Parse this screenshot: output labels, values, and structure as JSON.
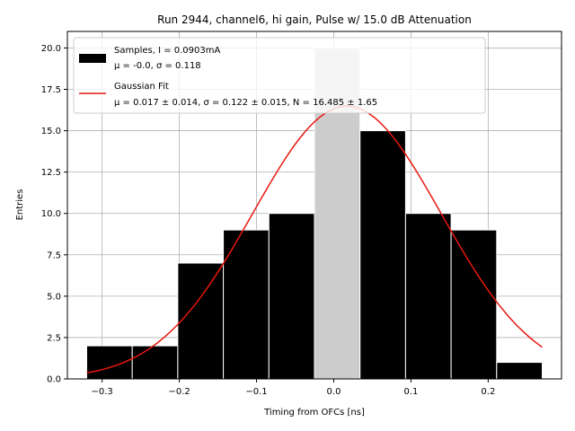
{
  "chart_data": {
    "type": "bar",
    "title": "Run 2944, channel6, hi gain, Pulse w/ 15.0 dB Attenuation",
    "xlabel": "Timing from OFCs [ns]",
    "ylabel": "Entries",
    "xlim": [
      -0.345,
      0.295
    ],
    "ylim": [
      0,
      21
    ],
    "grid": true,
    "legend_position": "top-left",
    "histogram": {
      "bin_edges": [
        -0.32,
        -0.261,
        -0.202,
        -0.143,
        -0.084,
        -0.025,
        0.034,
        0.093,
        0.152,
        0.211,
        0.27
      ],
      "counts": [
        2,
        2,
        7,
        9,
        10,
        20,
        15,
        10,
        9,
        1
      ],
      "highlight_bin_index": 5,
      "fill_color": "#000000",
      "highlight_color": "#cccccc"
    },
    "fit": {
      "type": "gaussian",
      "mu": 0.017,
      "sigma": 0.122,
      "N": 16.485,
      "color": "#e8170f",
      "x_range": [
        -0.32,
        0.27
      ]
    },
    "legend": [
      {
        "kind": "patch",
        "line1": "Samples, I = 0.0903mA",
        "line2": "μ = -0.0, σ = 0.118"
      },
      {
        "kind": "line",
        "line1": "Gaussian Fit",
        "line2": "μ = 0.017 ± 0.014, σ = 0.122 ± 0.015, N = 16.485 ± 1.65"
      }
    ],
    "x_ticks": [
      -0.3,
      -0.2,
      -0.1,
      0.0,
      0.1,
      0.2
    ],
    "x_tick_labels": [
      "−0.3",
      "−0.2",
      "−0.1",
      "0.0",
      "0.1",
      "0.2"
    ],
    "y_ticks": [
      0,
      2.5,
      5,
      7.5,
      10,
      12.5,
      15,
      17.5,
      20
    ],
    "y_tick_labels": [
      "0.0",
      "2.5",
      "5.0",
      "7.5",
      "10.0",
      "12.5",
      "15.0",
      "17.5",
      "20.0"
    ]
  }
}
